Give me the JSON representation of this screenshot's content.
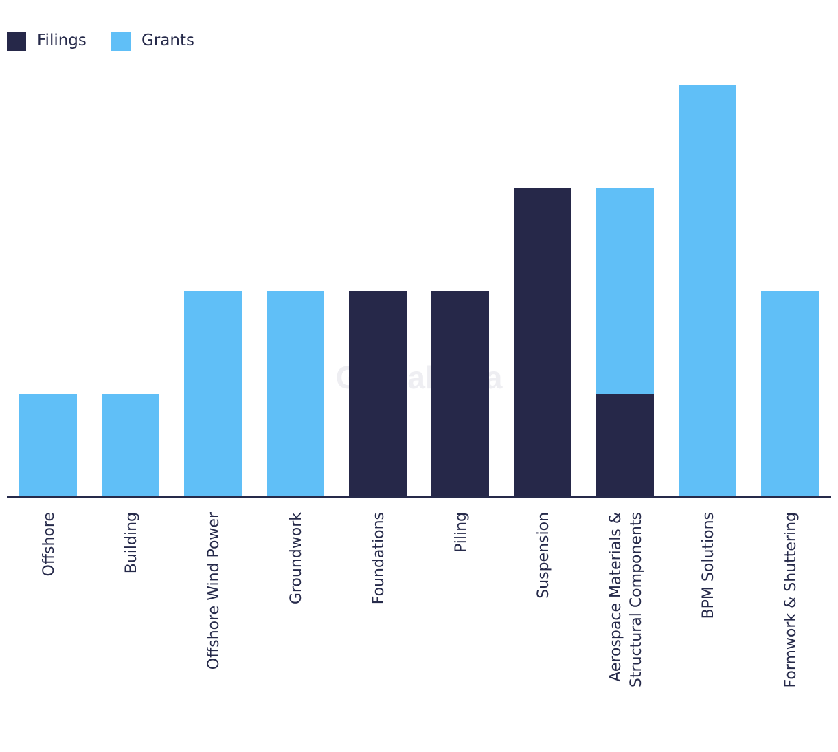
{
  "chart_data": {
    "type": "bar",
    "stacked": true,
    "title": "",
    "xlabel": "",
    "ylabel": "",
    "ylim": [
      0,
      4
    ],
    "grid": false,
    "legend_position": "top-left",
    "watermark": "GlobalData",
    "categories": [
      "Offshore",
      "Building",
      "Offshore Wind Power",
      "Groundwork",
      "Foundations",
      "Piling",
      "Suspension",
      "Aerospace Materials & Structural Components",
      "BPM Solutions",
      "Formwork & Shuttering"
    ],
    "category_label_lines": [
      [
        "Offshore"
      ],
      [
        "Building"
      ],
      [
        "Offshore Wind Power"
      ],
      [
        "Groundwork"
      ],
      [
        "Foundations"
      ],
      [
        "Piling"
      ],
      [
        "Suspension"
      ],
      [
        "Aerospace Materials &",
        "Structural Components"
      ],
      [
        "BPM Solutions"
      ],
      [
        "Formwork & Shuttering"
      ]
    ],
    "series": [
      {
        "name": "Filings",
        "color": "#262849",
        "values": [
          0,
          0,
          0,
          0,
          2,
          2,
          3,
          1,
          0,
          0
        ]
      },
      {
        "name": "Grants",
        "color": "#60bff7",
        "values": [
          1,
          1,
          2,
          2,
          0,
          0,
          0,
          2,
          4,
          2
        ]
      }
    ]
  }
}
